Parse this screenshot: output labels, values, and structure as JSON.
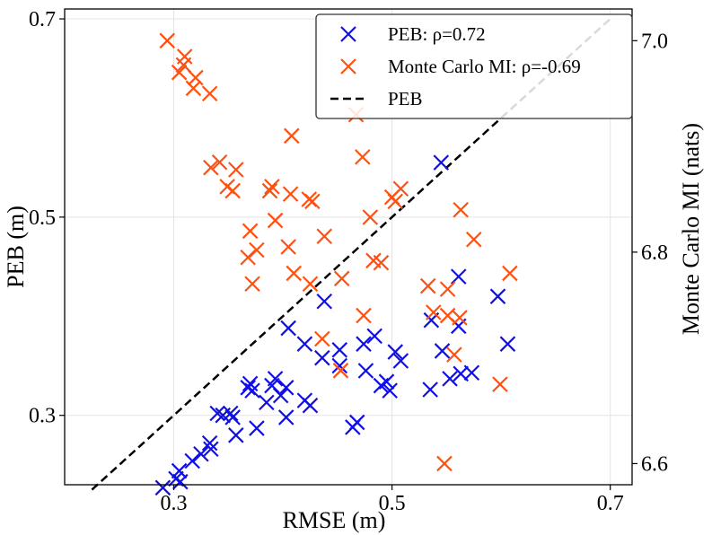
{
  "chart_data": {
    "type": "scatter",
    "xlabel": "RMSE (m)",
    "ylabel": "PEB (m)",
    "y2label": "Monte Carlo MI (nats)",
    "xlim": [
      0.2,
      0.72
    ],
    "ylim": [
      0.23,
      0.71
    ],
    "y2lim": [
      6.58,
      7.03
    ],
    "xticks": [
      0.3,
      0.5,
      0.7
    ],
    "xtick_labels": [
      "0.3",
      "0.5",
      "0.7"
    ],
    "yticks": [
      0.3,
      0.5,
      0.7
    ],
    "ytick_labels": [
      "0.3",
      "0.5",
      "0.7"
    ],
    "y2ticks": [
      6.6,
      6.8,
      7.0
    ],
    "y2tick_labels": [
      "6.6",
      "6.8",
      "7.0"
    ],
    "grid": true,
    "legend_position": "top-right",
    "legend": [
      {
        "label": "PEB: ρ=0.72",
        "marker": "x",
        "color": "#1010e6"
      },
      {
        "label": "Monte Carlo MI: ρ=-0.69",
        "marker": "x",
        "color": "#ff5010"
      },
      {
        "label": "PEB",
        "style": "dashed",
        "color": "#000000"
      }
    ],
    "reference_line": {
      "name": "PEB",
      "x": [
        0.225,
        0.7
      ],
      "y": [
        0.225,
        0.7
      ]
    },
    "series": [
      {
        "name": "PEB: ρ=0.72",
        "axis": "left",
        "color": "#1010e6",
        "marker": "x",
        "points": [
          [
            0.29,
            0.227
          ],
          [
            0.302,
            0.236
          ],
          [
            0.305,
            0.244
          ],
          [
            0.306,
            0.233
          ],
          [
            0.317,
            0.254
          ],
          [
            0.325,
            0.261
          ],
          [
            0.333,
            0.272
          ],
          [
            0.334,
            0.266
          ],
          [
            0.34,
            0.302
          ],
          [
            0.345,
            0.3
          ],
          [
            0.352,
            0.302
          ],
          [
            0.354,
            0.298
          ],
          [
            0.357,
            0.28
          ],
          [
            0.368,
            0.328
          ],
          [
            0.37,
            0.332
          ],
          [
            0.372,
            0.325
          ],
          [
            0.376,
            0.287
          ],
          [
            0.385,
            0.313
          ],
          [
            0.39,
            0.33
          ],
          [
            0.393,
            0.337
          ],
          [
            0.398,
            0.32
          ],
          [
            0.403,
            0.328
          ],
          [
            0.403,
            0.298
          ],
          [
            0.405,
            0.388
          ],
          [
            0.42,
            0.372
          ],
          [
            0.425,
            0.31
          ],
          [
            0.42,
            0.315
          ],
          [
            0.438,
            0.415
          ],
          [
            0.436,
            0.358
          ],
          [
            0.452,
            0.366
          ],
          [
            0.452,
            0.35
          ],
          [
            0.464,
            0.288
          ],
          [
            0.468,
            0.293
          ],
          [
            0.474,
            0.372
          ],
          [
            0.484,
            0.38
          ],
          [
            0.476,
            0.345
          ],
          [
            0.49,
            0.33
          ],
          [
            0.495,
            0.334
          ],
          [
            0.503,
            0.364
          ],
          [
            0.508,
            0.355
          ],
          [
            0.498,
            0.325
          ],
          [
            0.535,
            0.326
          ],
          [
            0.545,
            0.555
          ],
          [
            0.546,
            0.365
          ],
          [
            0.553,
            0.337
          ],
          [
            0.536,
            0.396
          ],
          [
            0.561,
            0.39
          ],
          [
            0.561,
            0.44
          ],
          [
            0.563,
            0.342
          ],
          [
            0.573,
            0.343
          ],
          [
            0.597,
            0.42
          ],
          [
            0.606,
            0.372
          ]
        ]
      },
      {
        "name": "Monte Carlo MI: ρ=-0.69",
        "axis": "right",
        "color": "#ff5010",
        "marker": "x",
        "points": [
          [
            0.294,
            7.0
          ],
          [
            0.31,
            6.985
          ],
          [
            0.309,
            6.977
          ],
          [
            0.305,
            6.97
          ],
          [
            0.318,
            6.955
          ],
          [
            0.32,
            6.965
          ],
          [
            0.333,
            6.95
          ],
          [
            0.334,
            6.88
          ],
          [
            0.342,
            6.885
          ],
          [
            0.349,
            6.862
          ],
          [
            0.354,
            6.858
          ],
          [
            0.357,
            6.878
          ],
          [
            0.37,
            6.82
          ],
          [
            0.368,
            6.795
          ],
          [
            0.372,
            6.77
          ],
          [
            0.376,
            6.802
          ],
          [
            0.388,
            6.858
          ],
          [
            0.39,
            6.862
          ],
          [
            0.393,
            6.83
          ],
          [
            0.405,
            6.805
          ],
          [
            0.407,
            6.855
          ],
          [
            0.41,
            6.78
          ],
          [
            0.408,
            6.91
          ],
          [
            0.424,
            6.85
          ],
          [
            0.427,
            6.848
          ],
          [
            0.425,
            6.77
          ],
          [
            0.438,
            6.815
          ],
          [
            0.436,
            6.718
          ],
          [
            0.454,
            6.775
          ],
          [
            0.453,
            6.688
          ],
          [
            0.467,
            6.93
          ],
          [
            0.473,
            6.89
          ],
          [
            0.474,
            6.74
          ],
          [
            0.48,
            6.833
          ],
          [
            0.483,
            6.792
          ],
          [
            0.49,
            6.79
          ],
          [
            0.5,
            6.852
          ],
          [
            0.503,
            6.848
          ],
          [
            0.508,
            6.86
          ],
          [
            0.533,
            6.768
          ],
          [
            0.538,
            6.743
          ],
          [
            0.548,
            6.6
          ],
          [
            0.551,
            6.765
          ],
          [
            0.551,
            6.74
          ],
          [
            0.557,
            6.703
          ],
          [
            0.562,
            6.738
          ],
          [
            0.563,
            6.84
          ],
          [
            0.575,
            6.812
          ],
          [
            0.599,
            6.675
          ],
          [
            0.608,
            6.78
          ]
        ]
      }
    ]
  }
}
